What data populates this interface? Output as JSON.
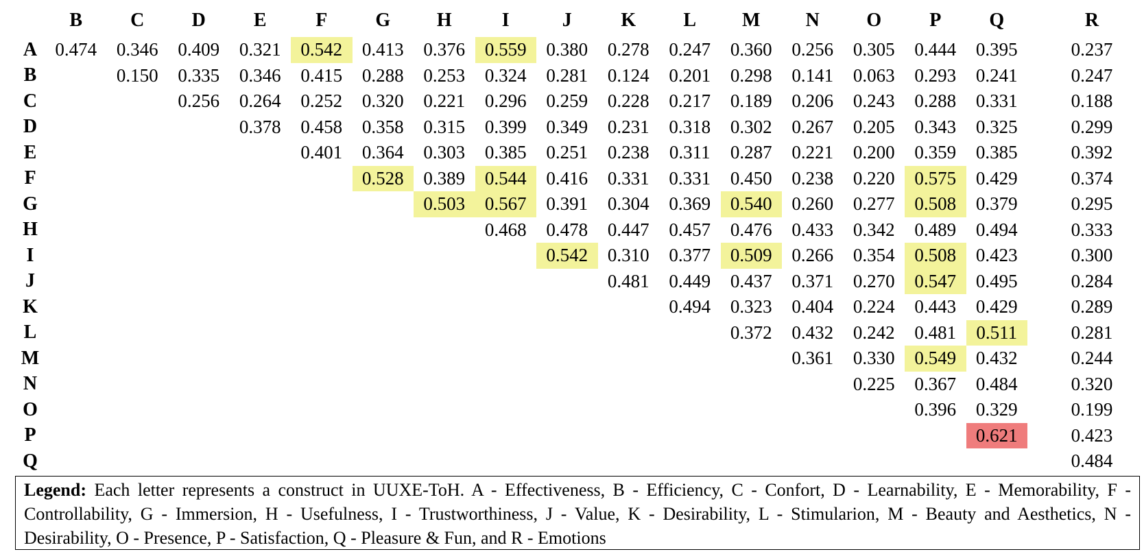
{
  "columns": [
    "B",
    "C",
    "D",
    "E",
    "F",
    "G",
    "H",
    "I",
    "J",
    "K",
    "L",
    "M",
    "N",
    "O",
    "P",
    "Q",
    "R"
  ],
  "rows": [
    {
      "label": "A",
      "cells": [
        "0.474",
        "0.346",
        "0.409",
        "0.321",
        "0.542",
        "0.413",
        "0.376",
        "0.559",
        "0.380",
        "0.278",
        "0.247",
        "0.360",
        "0.256",
        "0.305",
        "0.444",
        "0.395",
        "0.237"
      ]
    },
    {
      "label": "B",
      "cells": [
        "",
        "0.150",
        "0.335",
        "0.346",
        "0.415",
        "0.288",
        "0.253",
        "0.324",
        "0.281",
        "0.124",
        "0.201",
        "0.298",
        "0.141",
        "0.063",
        "0.293",
        "0.241",
        "0.247"
      ]
    },
    {
      "label": "C",
      "cells": [
        "",
        "",
        "0.256",
        "0.264",
        "0.252",
        "0.320",
        "0.221",
        "0.296",
        "0.259",
        "0.228",
        "0.217",
        "0.189",
        "0.206",
        "0.243",
        "0.288",
        "0.331",
        "0.188"
      ]
    },
    {
      "label": "D",
      "cells": [
        "",
        "",
        "",
        "0.378",
        "0.458",
        "0.358",
        "0.315",
        "0.399",
        "0.349",
        "0.231",
        "0.318",
        "0.302",
        "0.267",
        "0.205",
        "0.343",
        "0.325",
        "0.299"
      ]
    },
    {
      "label": "E",
      "cells": [
        "",
        "",
        "",
        "",
        "0.401",
        "0.364",
        "0.303",
        "0.385",
        "0.251",
        "0.238",
        "0.311",
        "0.287",
        "0.221",
        "0.200",
        "0.359",
        "0.385",
        "0.392"
      ]
    },
    {
      "label": "F",
      "cells": [
        "",
        "",
        "",
        "",
        "",
        "0.528",
        "0.389",
        "0.544",
        "0.416",
        "0.331",
        "0.331",
        "0.450",
        "0.238",
        "0.220",
        "0.575",
        "0.429",
        "0.374"
      ]
    },
    {
      "label": "G",
      "cells": [
        "",
        "",
        "",
        "",
        "",
        "",
        "0.503",
        "0.567",
        "0.391",
        "0.304",
        "0.369",
        "0.540",
        "0.260",
        "0.277",
        "0.508",
        "0.379",
        "0.295"
      ]
    },
    {
      "label": "H",
      "cells": [
        "",
        "",
        "",
        "",
        "",
        "",
        "",
        "0.468",
        "0.478",
        "0.447",
        "0.457",
        "0.476",
        "0.433",
        "0.342",
        "0.489",
        "0.494",
        "0.333"
      ]
    },
    {
      "label": "I",
      "cells": [
        "",
        "",
        "",
        "",
        "",
        "",
        "",
        "",
        "0.542",
        "0.310",
        "0.377",
        "0.509",
        "0.266",
        "0.354",
        "0.508",
        "0.423",
        "0.300"
      ]
    },
    {
      "label": "J",
      "cells": [
        "",
        "",
        "",
        "",
        "",
        "",
        "",
        "",
        "",
        "0.481",
        "0.449",
        "0.437",
        "0.371",
        "0.270",
        "0.547",
        "0.495",
        "0.284"
      ]
    },
    {
      "label": "K",
      "cells": [
        "",
        "",
        "",
        "",
        "",
        "",
        "",
        "",
        "",
        "",
        "0.494",
        "0.323",
        "0.404",
        "0.224",
        "0.443",
        "0.429",
        "0.289"
      ]
    },
    {
      "label": "L",
      "cells": [
        "",
        "",
        "",
        "",
        "",
        "",
        "",
        "",
        "",
        "",
        "",
        "0.372",
        "0.432",
        "0.242",
        "0.481",
        "0.511",
        "0.281"
      ]
    },
    {
      "label": "M",
      "cells": [
        "",
        "",
        "",
        "",
        "",
        "",
        "",
        "",
        "",
        "",
        "",
        "",
        "0.361",
        "0.330",
        "0.549",
        "0.432",
        "0.244"
      ]
    },
    {
      "label": "N",
      "cells": [
        "",
        "",
        "",
        "",
        "",
        "",
        "",
        "",
        "",
        "",
        "",
        "",
        "",
        "0.225",
        "0.367",
        "0.484",
        "0.320"
      ]
    },
    {
      "label": "O",
      "cells": [
        "",
        "",
        "",
        "",
        "",
        "",
        "",
        "",
        "",
        "",
        "",
        "",
        "",
        "",
        "0.396",
        "0.329",
        "0.199"
      ]
    },
    {
      "label": "P",
      "cells": [
        "",
        "",
        "",
        "",
        "",
        "",
        "",
        "",
        "",
        "",
        "",
        "",
        "",
        "",
        "",
        "0.621",
        "0.423"
      ]
    },
    {
      "label": "Q",
      "cells": [
        "",
        "",
        "",
        "",
        "",
        "",
        "",
        "",
        "",
        "",
        "",
        "",
        "",
        "",
        "",
        "",
        "0.484"
      ]
    }
  ],
  "highlights": {
    "yellow": [
      [
        "A",
        "F"
      ],
      [
        "A",
        "I"
      ],
      [
        "F",
        "G"
      ],
      [
        "F",
        "I"
      ],
      [
        "F",
        "P"
      ],
      [
        "G",
        "H"
      ],
      [
        "G",
        "I"
      ],
      [
        "G",
        "M"
      ],
      [
        "G",
        "P"
      ],
      [
        "I",
        "J"
      ],
      [
        "I",
        "M"
      ],
      [
        "I",
        "P"
      ],
      [
        "J",
        "P"
      ],
      [
        "L",
        "Q"
      ],
      [
        "M",
        "P"
      ]
    ],
    "red": [
      [
        "P",
        "Q"
      ]
    ],
    "colors": {
      "yellow": "#f3f39b",
      "red": "#ef7c7c"
    }
  },
  "legend": {
    "label": "Legend:",
    "text": " Each letter represents a construct in UUXE-ToH. A - Effectiveness, B - Efficiency, C - Confort, D - Learnability, E - Memorability, F - Controllability, G - Immersion, H - Usefulness, I - Trustworthiness, J - Value, K - Desirability, L - Stimularion, M - Beauty and Aesthetics, N - Desirability, O - Presence, P - Satisfaction, Q - Pleasure & Fun, and R - Emotions"
  }
}
